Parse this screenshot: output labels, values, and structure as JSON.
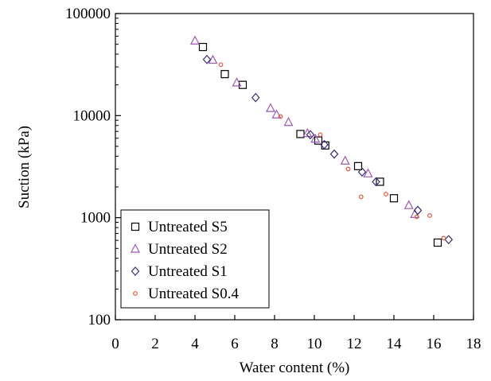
{
  "chart_data": {
    "type": "scatter",
    "xlabel": "Water content (%)",
    "ylabel": "Suction (kPa)",
    "xlim": [
      0,
      18
    ],
    "ylim": [
      100,
      100000
    ],
    "yscale": "log",
    "x_ticks": [
      0,
      2,
      4,
      6,
      8,
      10,
      12,
      14,
      16,
      18
    ],
    "x_tick_labels": [
      "0",
      "2",
      "4",
      "6",
      "8",
      "10",
      "12",
      "14",
      "16",
      "18"
    ],
    "y_ticks": [
      100,
      1000,
      10000,
      100000
    ],
    "y_tick_labels": [
      "100",
      "1000",
      "10000",
      "100000"
    ],
    "grid": false,
    "legend_position": "bottom-left",
    "series": [
      {
        "name": "Untreated S5",
        "marker": "square",
        "color": "#000000",
        "points": [
          {
            "x": 4.4,
            "y": 47000
          },
          {
            "x": 5.5,
            "y": 25500
          },
          {
            "x": 6.4,
            "y": 20000
          },
          {
            "x": 9.3,
            "y": 6600
          },
          {
            "x": 10.2,
            "y": 5700
          },
          {
            "x": 10.55,
            "y": 5100
          },
          {
            "x": 12.2,
            "y": 3200
          },
          {
            "x": 13.3,
            "y": 2250
          },
          {
            "x": 14.0,
            "y": 1550
          },
          {
            "x": 16.2,
            "y": 570
          }
        ]
      },
      {
        "name": "Untreated S2",
        "marker": "triangle",
        "color": "#9b59b6",
        "points": [
          {
            "x": 4.0,
            "y": 54000
          },
          {
            "x": 4.9,
            "y": 35000
          },
          {
            "x": 6.1,
            "y": 21000
          },
          {
            "x": 7.8,
            "y": 11800
          },
          {
            "x": 8.1,
            "y": 10200
          },
          {
            "x": 8.7,
            "y": 8600
          },
          {
            "x": 9.65,
            "y": 6700
          },
          {
            "x": 10.05,
            "y": 5900
          },
          {
            "x": 11.55,
            "y": 3600
          },
          {
            "x": 12.7,
            "y": 2700
          },
          {
            "x": 14.75,
            "y": 1320
          },
          {
            "x": 15.05,
            "y": 1080
          }
        ]
      },
      {
        "name": "Untreated S1",
        "marker": "diamond",
        "color": "#3a2a7a",
        "points": [
          {
            "x": 4.6,
            "y": 35500
          },
          {
            "x": 7.05,
            "y": 15000
          },
          {
            "x": 9.8,
            "y": 6500
          },
          {
            "x": 10.5,
            "y": 5200
          },
          {
            "x": 11.0,
            "y": 4200
          },
          {
            "x": 12.4,
            "y": 2800
          },
          {
            "x": 13.1,
            "y": 2250
          },
          {
            "x": 15.2,
            "y": 1180
          },
          {
            "x": 16.75,
            "y": 610
          }
        ]
      },
      {
        "name": "Untreated S0.4",
        "marker": "circle",
        "color": "#e8553e",
        "points": [
          {
            "x": 5.3,
            "y": 31500
          },
          {
            "x": 8.3,
            "y": 9800
          },
          {
            "x": 10.3,
            "y": 6500
          },
          {
            "x": 11.7,
            "y": 3000
          },
          {
            "x": 12.35,
            "y": 1600
          },
          {
            "x": 13.6,
            "y": 1700
          },
          {
            "x": 15.15,
            "y": 1020
          },
          {
            "x": 15.8,
            "y": 1050
          },
          {
            "x": 16.5,
            "y": 630
          }
        ]
      }
    ]
  }
}
